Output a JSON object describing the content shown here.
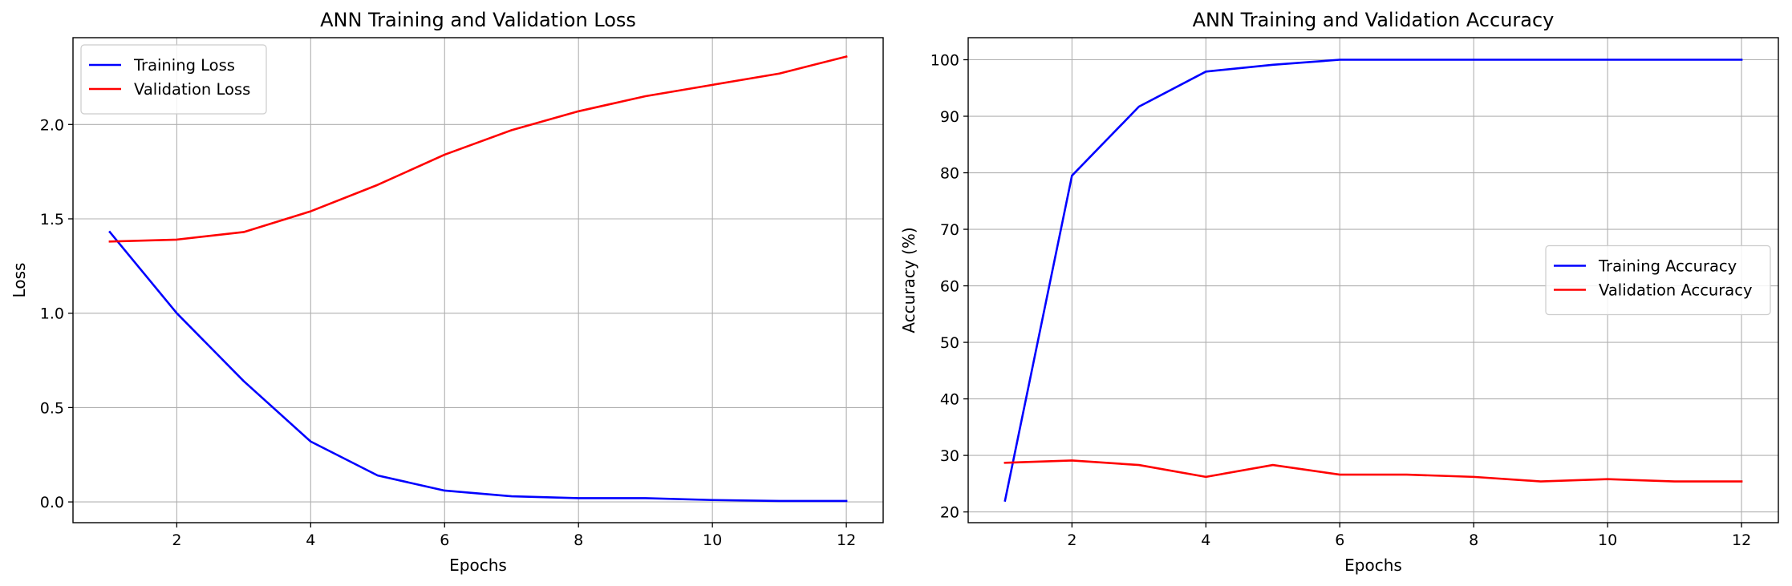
{
  "chart_data": [
    {
      "type": "line",
      "title": "ANN Training and Validation Loss",
      "xlabel": "Epochs",
      "ylabel": "Loss",
      "x": [
        1,
        2,
        3,
        4,
        5,
        6,
        7,
        8,
        9,
        10,
        11,
        12
      ],
      "xlim": [
        0.45,
        12.55
      ],
      "ylim": [
        -0.11,
        2.46
      ],
      "xticks": [
        2,
        4,
        6,
        8,
        10,
        12
      ],
      "yticks": [
        0.0,
        0.5,
        1.0,
        1.5,
        2.0
      ],
      "ytick_labels": [
        "0.0",
        "0.5",
        "1.0",
        "1.5",
        "2.0"
      ],
      "grid": true,
      "legend_position": "upper-left",
      "series": [
        {
          "name": "Training Loss",
          "color": "#0000ff",
          "values": [
            1.43,
            1.0,
            0.64,
            0.32,
            0.14,
            0.06,
            0.03,
            0.02,
            0.02,
            0.01,
            0.005,
            0.005
          ]
        },
        {
          "name": "Validation Loss",
          "color": "#ff0000",
          "values": [
            1.38,
            1.39,
            1.43,
            1.54,
            1.68,
            1.84,
            1.97,
            2.07,
            2.15,
            2.21,
            2.27,
            2.36
          ]
        }
      ]
    },
    {
      "type": "line",
      "title": "ANN Training and Validation Accuracy",
      "xlabel": "Epochs",
      "ylabel": "Accuracy (%)",
      "x": [
        1,
        2,
        3,
        4,
        5,
        6,
        7,
        8,
        9,
        10,
        11,
        12
      ],
      "xlim": [
        0.45,
        12.55
      ],
      "ylim": [
        18.1,
        103.9
      ],
      "xticks": [
        2,
        4,
        6,
        8,
        10,
        12
      ],
      "yticks": [
        20,
        30,
        40,
        50,
        60,
        70,
        80,
        90,
        100
      ],
      "ytick_labels": [
        "20",
        "30",
        "40",
        "50",
        "60",
        "70",
        "80",
        "90",
        "100"
      ],
      "grid": true,
      "legend_position": "center-right",
      "series": [
        {
          "name": "Training Accuracy",
          "color": "#0000ff",
          "values": [
            22.0,
            79.5,
            91.7,
            97.9,
            99.1,
            100,
            100,
            100,
            100,
            100,
            100,
            100
          ]
        },
        {
          "name": "Validation Accuracy",
          "color": "#ff0000",
          "values": [
            28.7,
            29.1,
            28.3,
            26.2,
            28.3,
            26.6,
            26.6,
            26.2,
            25.4,
            25.8,
            25.4,
            25.4
          ]
        }
      ]
    }
  ]
}
